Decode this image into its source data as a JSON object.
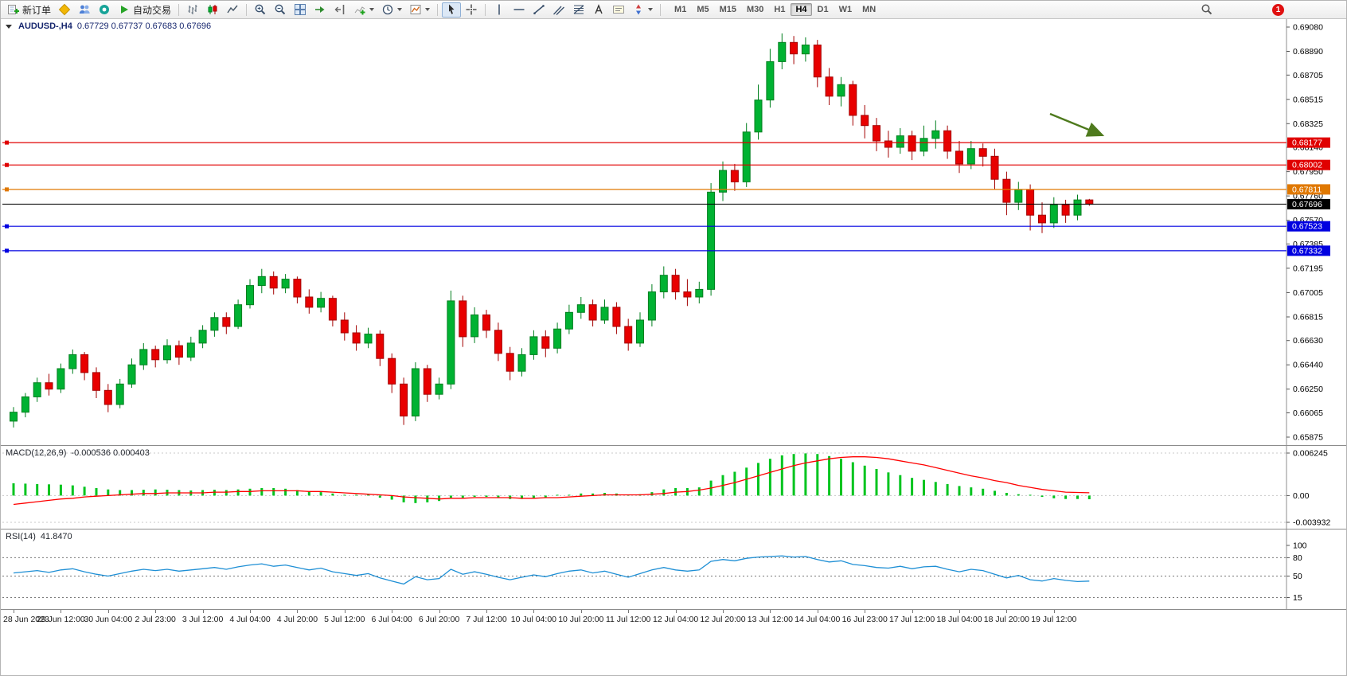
{
  "toolbar": {
    "new_order": "新订单",
    "auto_trading": "自动交易",
    "timeframes": [
      "M1",
      "M5",
      "M15",
      "M30",
      "H1",
      "H4",
      "D1",
      "W1",
      "MN"
    ],
    "active_timeframe": "H4",
    "notification_count": "1"
  },
  "chart_data": [
    {
      "type": "candlestick",
      "title": "AUDUSD-,H4",
      "ohlc_text": "0.67729 0.67737 0.67683 0.67696",
      "ylim": [
        0.65875,
        0.6908
      ],
      "y_ticks": [
        "0.69080",
        "0.68890",
        "0.68705",
        "0.68515",
        "0.68325",
        "0.68140",
        "0.67950",
        "0.67760",
        "0.67570",
        "0.67385",
        "0.67195",
        "0.67005",
        "0.66815",
        "0.66630",
        "0.66440",
        "0.66250",
        "0.66065",
        "0.65875"
      ],
      "x_labels": [
        "28 Jun 2023",
        "29 Jun 12:00",
        "30 Jun 04:00",
        "2 Jul 23:00",
        "3 Jul 12:00",
        "4 Jul 04:00",
        "4 Jul 20:00",
        "5 Jul 12:00",
        "6 Jul 04:00",
        "6 Jul 20:00",
        "7 Jul 12:00",
        "10 Jul 04:00",
        "10 Jul 20:00",
        "11 Jul 12:00",
        "12 Jul 04:00",
        "12 Jul 20:00",
        "13 Jul 12:00",
        "14 Jul 04:00",
        "16 Jul 23:00",
        "17 Jul 12:00",
        "18 Jul 04:00",
        "18 Jul 20:00",
        "19 Jul 12:00"
      ],
      "bull_color": "#00b232",
      "bear_color": "#e80000",
      "candles": [
        [
          0.66,
          0.6611,
          0.6595,
          0.6607
        ],
        [
          0.6607,
          0.6622,
          0.6603,
          0.6619
        ],
        [
          0.6619,
          0.6634,
          0.6615,
          0.663
        ],
        [
          0.663,
          0.6637,
          0.662,
          0.6625
        ],
        [
          0.6625,
          0.6645,
          0.6622,
          0.6641
        ],
        [
          0.6641,
          0.6656,
          0.6637,
          0.6652
        ],
        [
          0.6652,
          0.6654,
          0.6632,
          0.6638
        ],
        [
          0.6638,
          0.6642,
          0.6618,
          0.6624
        ],
        [
          0.6624,
          0.6629,
          0.6607,
          0.6613
        ],
        [
          0.6613,
          0.6633,
          0.661,
          0.6629
        ],
        [
          0.6629,
          0.6649,
          0.6626,
          0.6644
        ],
        [
          0.6644,
          0.6661,
          0.664,
          0.6656
        ],
        [
          0.6656,
          0.6659,
          0.6642,
          0.6648
        ],
        [
          0.6648,
          0.6664,
          0.6645,
          0.6659
        ],
        [
          0.6659,
          0.6663,
          0.6644,
          0.665
        ],
        [
          0.665,
          0.6666,
          0.6647,
          0.6661
        ],
        [
          0.6661,
          0.6675,
          0.6657,
          0.6671
        ],
        [
          0.6671,
          0.6685,
          0.6666,
          0.6681
        ],
        [
          0.6681,
          0.6685,
          0.6668,
          0.6674
        ],
        [
          0.6674,
          0.6695,
          0.6672,
          0.6691
        ],
        [
          0.6691,
          0.6711,
          0.6688,
          0.6706
        ],
        [
          0.6706,
          0.6719,
          0.67,
          0.6713
        ],
        [
          0.6713,
          0.6717,
          0.6699,
          0.6704
        ],
        [
          0.6704,
          0.6715,
          0.67,
          0.6711
        ],
        [
          0.6711,
          0.6713,
          0.6692,
          0.6697
        ],
        [
          0.6697,
          0.6703,
          0.6684,
          0.6689
        ],
        [
          0.6689,
          0.6701,
          0.6685,
          0.6696
        ],
        [
          0.6696,
          0.6698,
          0.6674,
          0.6679
        ],
        [
          0.6679,
          0.6685,
          0.6663,
          0.6669
        ],
        [
          0.6669,
          0.6675,
          0.6655,
          0.6661
        ],
        [
          0.6661,
          0.6673,
          0.6657,
          0.6668
        ],
        [
          0.6668,
          0.6671,
          0.6643,
          0.6649
        ],
        [
          0.6649,
          0.6653,
          0.6622,
          0.6629
        ],
        [
          0.6629,
          0.6634,
          0.6597,
          0.6604
        ],
        [
          0.6604,
          0.6646,
          0.66,
          0.6641
        ],
        [
          0.6641,
          0.6644,
          0.6615,
          0.6621
        ],
        [
          0.6621,
          0.6634,
          0.6617,
          0.6629
        ],
        [
          0.6629,
          0.6702,
          0.6625,
          0.6694
        ],
        [
          0.6694,
          0.6698,
          0.6658,
          0.6666
        ],
        [
          0.6666,
          0.6689,
          0.6661,
          0.6683
        ],
        [
          0.6683,
          0.6687,
          0.6665,
          0.6671
        ],
        [
          0.6671,
          0.6677,
          0.6647,
          0.6653
        ],
        [
          0.6653,
          0.6658,
          0.6632,
          0.6639
        ],
        [
          0.6639,
          0.6657,
          0.6635,
          0.6652
        ],
        [
          0.6652,
          0.6671,
          0.6648,
          0.6666
        ],
        [
          0.6666,
          0.6671,
          0.665,
          0.6657
        ],
        [
          0.6657,
          0.6677,
          0.6653,
          0.6672
        ],
        [
          0.6672,
          0.6691,
          0.6668,
          0.6685
        ],
        [
          0.6685,
          0.6697,
          0.668,
          0.6691
        ],
        [
          0.6691,
          0.6695,
          0.6674,
          0.6679
        ],
        [
          0.6679,
          0.6695,
          0.6676,
          0.6689
        ],
        [
          0.6689,
          0.6693,
          0.6668,
          0.6674
        ],
        [
          0.6674,
          0.668,
          0.6655,
          0.6661
        ],
        [
          0.6661,
          0.6685,
          0.6658,
          0.6679
        ],
        [
          0.6679,
          0.6707,
          0.6674,
          0.6701
        ],
        [
          0.6701,
          0.6721,
          0.6696,
          0.6714
        ],
        [
          0.6714,
          0.6719,
          0.6695,
          0.6701
        ],
        [
          0.6701,
          0.6711,
          0.669,
          0.6697
        ],
        [
          0.6697,
          0.6709,
          0.6692,
          0.6703
        ],
        [
          0.6703,
          0.6786,
          0.6698,
          0.6779
        ],
        [
          0.6779,
          0.6803,
          0.6772,
          0.6796
        ],
        [
          0.6796,
          0.6801,
          0.678,
          0.6787
        ],
        [
          0.6787,
          0.6833,
          0.6783,
          0.6826
        ],
        [
          0.6826,
          0.6863,
          0.682,
          0.6851
        ],
        [
          0.6851,
          0.6891,
          0.6845,
          0.6881
        ],
        [
          0.6881,
          0.6903,
          0.6875,
          0.6896
        ],
        [
          0.6896,
          0.6901,
          0.6879,
          0.6887
        ],
        [
          0.6887,
          0.69,
          0.6881,
          0.6894
        ],
        [
          0.6894,
          0.6898,
          0.6861,
          0.6869
        ],
        [
          0.6869,
          0.6876,
          0.6847,
          0.6854
        ],
        [
          0.6854,
          0.6869,
          0.6846,
          0.6863
        ],
        [
          0.6863,
          0.6866,
          0.6831,
          0.6839
        ],
        [
          0.6839,
          0.6847,
          0.6821,
          0.6831
        ],
        [
          0.6831,
          0.6837,
          0.6811,
          0.6819
        ],
        [
          0.6819,
          0.6827,
          0.6806,
          0.6814
        ],
        [
          0.6814,
          0.6829,
          0.6809,
          0.6823
        ],
        [
          0.6823,
          0.6827,
          0.6804,
          0.6811
        ],
        [
          0.6811,
          0.6831,
          0.6807,
          0.6821
        ],
        [
          0.6821,
          0.6835,
          0.6813,
          0.6827
        ],
        [
          0.6827,
          0.6831,
          0.6805,
          0.6811
        ],
        [
          0.6811,
          0.6819,
          0.6794,
          0.6801
        ],
        [
          0.6801,
          0.6819,
          0.6797,
          0.6813
        ],
        [
          0.6813,
          0.6817,
          0.6799,
          0.6807
        ],
        [
          0.6807,
          0.6813,
          0.6781,
          0.6789
        ],
        [
          0.6789,
          0.6795,
          0.6761,
          0.6771
        ],
        [
          0.6771,
          0.6787,
          0.6765,
          0.6781
        ],
        [
          0.6781,
          0.6785,
          0.6749,
          0.6761
        ],
        [
          0.6761,
          0.6771,
          0.6747,
          0.6755
        ],
        [
          0.6755,
          0.6775,
          0.6751,
          0.6769
        ],
        [
          0.6769,
          0.6773,
          0.6755,
          0.6761
        ],
        [
          0.6761,
          0.6777,
          0.6757,
          0.67729
        ],
        [
          0.67729,
          0.67737,
          0.67683,
          0.67696
        ]
      ],
      "levels": [
        {
          "price": 0.68177,
          "label": "0.68177",
          "color": "#e00000"
        },
        {
          "price": 0.68002,
          "label": "0.68002",
          "color": "#e00000"
        },
        {
          "price": 0.67811,
          "label": "0.67811",
          "color": "#e07800"
        },
        {
          "price": 0.67523,
          "label": "0.67523",
          "color": "#0000e0"
        },
        {
          "price": 0.67332,
          "label": "0.67332",
          "color": "#0000e0"
        }
      ],
      "current_price": {
        "price": 0.67696,
        "label": "0.67696",
        "color": "#000000"
      },
      "annotation": {
        "type": "arrow",
        "color": "#4e7a1d"
      }
    },
    {
      "type": "bar",
      "title": "MACD(12,26,9)",
      "values_text": "-0.000536 0.000403",
      "ylim": [
        -0.003932,
        0.006245
      ],
      "y_ticks": [
        "0.006245",
        "0.00",
        "-0.003932"
      ],
      "colors": {
        "histogram": "#00c41e",
        "signal": "#ff0000"
      },
      "histogram": [
        0.0018,
        0.00175,
        0.0017,
        0.00165,
        0.0016,
        0.0015,
        0.0013,
        0.0011,
        0.0009,
        0.0008,
        0.0008,
        0.00085,
        0.0009,
        0.00085,
        0.0008,
        0.00075,
        0.0008,
        0.00085,
        0.0008,
        0.0009,
        0.001,
        0.0011,
        0.0011,
        0.001,
        0.0008,
        0.0006,
        0.0005,
        0.0003,
        0.0001,
        -0.0001,
        -0.0001,
        -0.0003,
        -0.0006,
        -0.001,
        -0.0011,
        -0.001,
        -0.0008,
        -0.0003,
        -0.0003,
        -0.0002,
        -0.0002,
        -0.0003,
        -0.0005,
        -0.0005,
        -0.0004,
        -0.0003,
        -0.0001,
        0.0001,
        0.0003,
        0.0003,
        0.0004,
        0.0003,
        0.0001,
        0.0002,
        0.0005,
        0.0009,
        0.0011,
        0.0011,
        0.0012,
        0.0022,
        0.003,
        0.0035,
        0.0041,
        0.0048,
        0.0054,
        0.0059,
        0.0061,
        0.0062,
        0.0061,
        0.0058,
        0.0054,
        0.0049,
        0.0044,
        0.0039,
        0.0034,
        0.003,
        0.0026,
        0.0023,
        0.002,
        0.0017,
        0.0014,
        0.0012,
        0.001,
        0.0007,
        0.0004,
        0.0002,
        0.0,
        -0.0002,
        -0.0004,
        -0.0005,
        -0.0005,
        -0.000536
      ],
      "signal": [
        -0.0013,
        -0.0011,
        -0.0009,
        -0.0007,
        -0.0005,
        -0.0004,
        -0.0002,
        -0.0001,
        0.0,
        0.0001,
        0.0002,
        0.0003,
        0.0003,
        0.0004,
        0.0004,
        0.0004,
        0.0004,
        0.0005,
        0.0005,
        0.0006,
        0.0006,
        0.0007,
        0.0007,
        0.0007,
        0.0007,
        0.0006,
        0.0006,
        0.0005,
        0.0004,
        0.0003,
        0.0002,
        0.0001,
        0.0,
        -0.0002,
        -0.0003,
        -0.0004,
        -0.0005,
        -0.0004,
        -0.0004,
        -0.0003,
        -0.0003,
        -0.0003,
        -0.0003,
        -0.0004,
        -0.0004,
        -0.0003,
        -0.0003,
        -0.0002,
        -0.0001,
        0.0,
        0.0001,
        0.0001,
        0.0001,
        0.0001,
        0.0002,
        0.0003,
        0.0005,
        0.0006,
        0.0008,
        0.0011,
        0.0015,
        0.0019,
        0.0024,
        0.0029,
        0.0034,
        0.0039,
        0.0044,
        0.0048,
        0.0051,
        0.0054,
        0.0056,
        0.0057,
        0.0057,
        0.0056,
        0.0054,
        0.0051,
        0.0048,
        0.0045,
        0.0041,
        0.0037,
        0.0033,
        0.0029,
        0.0026,
        0.0022,
        0.0019,
        0.0015,
        0.0012,
        0.0009,
        0.0007,
        0.0005,
        0.00045,
        0.000403
      ]
    },
    {
      "type": "line",
      "title": "RSI(14)",
      "values_text": "41.8470",
      "ylim": [
        0,
        100
      ],
      "y_ticks": [
        "100",
        "80",
        "50",
        "15"
      ],
      "level_lines": [
        80,
        50,
        15
      ],
      "color": "#1e8fd5",
      "values": [
        55,
        57,
        59,
        56,
        60,
        62,
        57,
        53,
        50,
        54,
        58,
        61,
        59,
        61,
        58,
        60,
        62,
        64,
        61,
        65,
        68,
        70,
        66,
        68,
        64,
        60,
        63,
        57,
        54,
        51,
        54,
        47,
        42,
        37,
        49,
        44,
        46,
        61,
        53,
        57,
        53,
        48,
        44,
        48,
        52,
        49,
        54,
        58,
        60,
        55,
        58,
        53,
        48,
        54,
        60,
        64,
        60,
        58,
        60,
        74,
        77,
        75,
        79,
        81,
        82,
        83,
        81,
        82,
        77,
        73,
        75,
        69,
        67,
        64,
        63,
        66,
        62,
        65,
        66,
        61,
        57,
        61,
        59,
        53,
        47,
        51,
        44,
        42,
        46,
        43,
        41,
        41.847
      ]
    }
  ]
}
